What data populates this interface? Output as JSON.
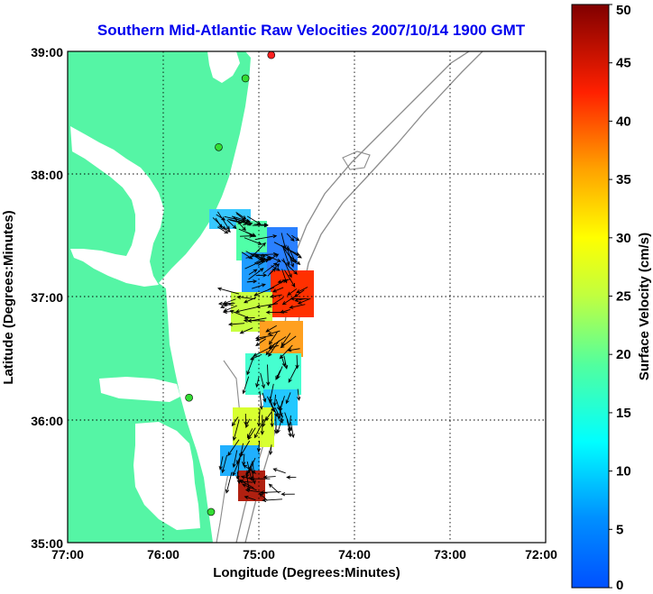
{
  "title": "Southern Mid-Atlantic Raw Velocities 2007/10/14 1900 GMT",
  "xlabel": "Longitude (Degrees:Minutes)",
  "ylabel": "Latitude (Degrees:Minutes)",
  "colorbar_label": "Surface Velocity (cm/s)",
  "colors": {
    "land": "#55f5a5",
    "title": "#0000ee",
    "station": "#33dd33",
    "station_red": "#ff2020"
  },
  "chart_data": {
    "type": "map",
    "x_ticks": [
      "77:00",
      "76:00",
      "75:00",
      "74:00",
      "73:00",
      "72:00"
    ],
    "y_ticks": [
      "39:00",
      "38:00",
      "37:00",
      "36:00",
      "35:00"
    ],
    "x_range_deg_west": [
      77,
      72
    ],
    "y_range_deg_north": [
      35,
      39
    ],
    "grid": "dotted",
    "colorbar": {
      "min": 0,
      "max": 50,
      "ticks": [
        "50",
        "45",
        "40",
        "35",
        "30",
        "25",
        "20",
        "15",
        "10",
        "5",
        "0"
      ],
      "colormap": "jet"
    },
    "stations": [
      {
        "lon": 74.87,
        "lat": 38.97,
        "color": "red"
      },
      {
        "lon": 75.14,
        "lat": 38.78,
        "color": "green"
      },
      {
        "lon": 75.42,
        "lat": 38.22,
        "color": "green"
      },
      {
        "lon": 75.73,
        "lat": 36.18,
        "color": "green"
      },
      {
        "lon": 75.5,
        "lat": 35.25,
        "color": "green"
      }
    ]
  }
}
